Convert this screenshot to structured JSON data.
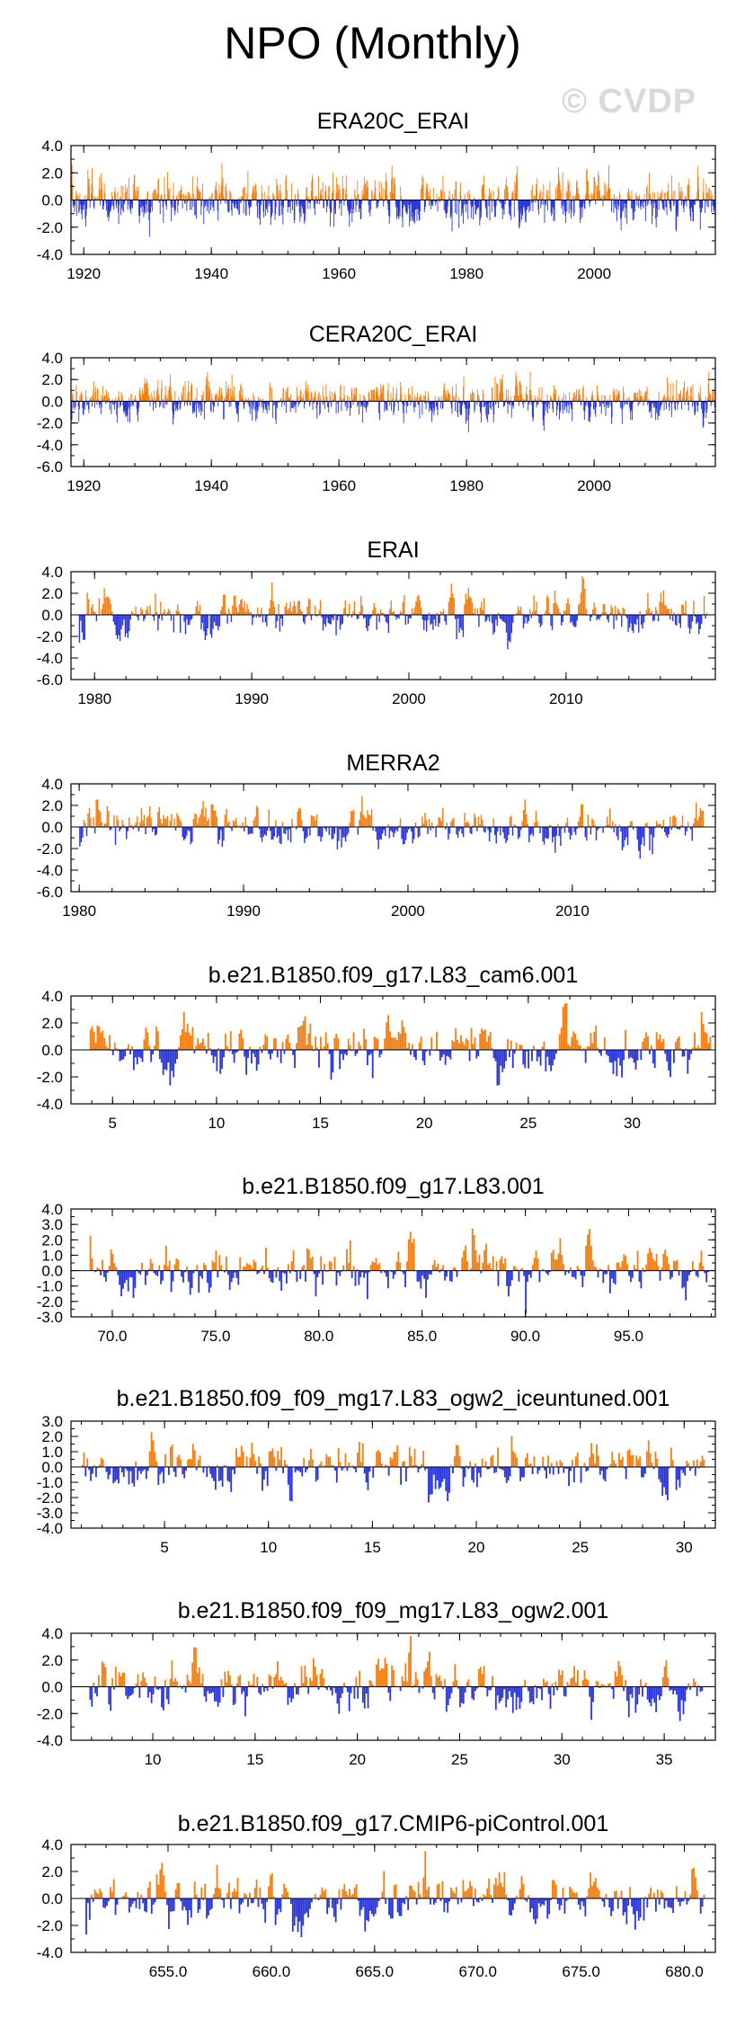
{
  "title": "NPO (Monthly)",
  "watermark": "© CVDP",
  "colors": {
    "positive": "#f07f17",
    "negative": "#2b36d9",
    "frame": "#000000"
  },
  "chart_data": [
    {
      "type": "bar",
      "title": "ERA20C_ERAI",
      "ylim": [
        -4,
        4
      ],
      "yticks": [
        4,
        2,
        0,
        -2,
        -4
      ],
      "ytick_labels": [
        "4.0",
        "2.0",
        "0.0",
        "-2.0",
        "-4.0"
      ],
      "xlim": [
        1918,
        2019
      ],
      "xticks": [
        1920,
        1940,
        1960,
        1980,
        2000
      ],
      "xtick_labels": [
        "1920",
        "1940",
        "1960",
        "1980",
        "2000"
      ],
      "series_spec": {
        "start": 1918,
        "end": 2019,
        "amplitude": 0.95,
        "seed": 11
      }
    },
    {
      "type": "bar",
      "title": "CERA20C_ERAI",
      "ylim": [
        -6,
        4
      ],
      "yticks": [
        4,
        2,
        0,
        -2,
        -4,
        -6
      ],
      "ytick_labels": [
        "4.0",
        "2.0",
        "0.0",
        "-2.0",
        "-4.0",
        "-6.0"
      ],
      "xlim": [
        1918,
        2019
      ],
      "xticks": [
        1920,
        1940,
        1960,
        1980,
        2000
      ],
      "xtick_labels": [
        "1920",
        "1940",
        "1960",
        "1980",
        "2000"
      ],
      "series_spec": {
        "start": 1918,
        "end": 2019,
        "amplitude": 0.9,
        "seed": 23
      }
    },
    {
      "type": "bar",
      "title": "ERAI",
      "ylim": [
        -6,
        4
      ],
      "yticks": [
        4,
        2,
        0,
        -2,
        -4,
        -6
      ],
      "ytick_labels": [
        "4.0",
        "2.0",
        "0.0",
        "-2.0",
        "-4.0",
        "-6.0"
      ],
      "xlim": [
        1978.5,
        2019.5
      ],
      "xticks": [
        1980,
        1990,
        2000,
        2010
      ],
      "xtick_labels": [
        "1980",
        "1990",
        "2000",
        "2010"
      ],
      "series_spec": {
        "start": 1979,
        "end": 2019,
        "amplitude": 1.0,
        "seed": 37
      }
    },
    {
      "type": "bar",
      "title": "MERRA2",
      "ylim": [
        -6,
        4
      ],
      "yticks": [
        4,
        2,
        0,
        -2,
        -4,
        -6
      ],
      "ytick_labels": [
        "4.0",
        "2.0",
        "0.0",
        "-2.0",
        "-4.0",
        "-6.0"
      ],
      "xlim": [
        1979.5,
        2018.7
      ],
      "xticks": [
        1980,
        1990,
        2000,
        2010
      ],
      "xtick_labels": [
        "1980",
        "1990",
        "2000",
        "2010"
      ],
      "series_spec": {
        "start": 1980,
        "end": 2018,
        "amplitude": 1.0,
        "seed": 41
      }
    },
    {
      "type": "bar",
      "title": "b.e21.B1850.f09_g17.L83_cam6.001",
      "ylim": [
        -4,
        4
      ],
      "yticks": [
        4,
        2,
        0,
        -2,
        -4
      ],
      "ytick_labels": [
        "4.0",
        "2.0",
        "0.0",
        "-2.0",
        "-4.0"
      ],
      "xlim": [
        3,
        34
      ],
      "xticks": [
        5,
        10,
        15,
        20,
        25,
        30
      ],
      "xtick_labels": [
        "5",
        "10",
        "15",
        "20",
        "25",
        "30"
      ],
      "series_spec": {
        "start": 3.9,
        "end": 33.8,
        "amplitude": 1.05,
        "seed": 53
      }
    },
    {
      "type": "bar",
      "title": "b.e21.B1850.f09_g17.L83.001",
      "ylim": [
        -3,
        4
      ],
      "yticks": [
        4,
        3,
        2,
        1,
        0,
        -1,
        -2,
        -3
      ],
      "ytick_labels": [
        "4.0",
        "3.0",
        "2.0",
        "1.0",
        "0.0",
        "-1.0",
        "-2.0",
        "-3.0"
      ],
      "xlim": [
        68,
        99.2
      ],
      "xticks": [
        70,
        75,
        80,
        85,
        90,
        95
      ],
      "xtick_labels": [
        "70.0",
        "75.0",
        "80.0",
        "85.0",
        "90.0",
        "95.0"
      ],
      "series_spec": {
        "start": 68.9,
        "end": 98.9,
        "amplitude": 0.85,
        "seed": 67
      }
    },
    {
      "type": "bar",
      "title": "b.e21.B1850.f09_f09_mg17.L83_ogw2_iceuntuned.001",
      "ylim": [
        -4,
        3
      ],
      "yticks": [
        3,
        2,
        1,
        0,
        -1,
        -2,
        -3,
        -4
      ],
      "ytick_labels": [
        "3.0",
        "2.0",
        "1.0",
        "0.0",
        "-1.0",
        "-2.0",
        "-3.0",
        "-4.0"
      ],
      "xlim": [
        0.5,
        31.5
      ],
      "xticks": [
        5,
        10,
        15,
        20,
        25,
        30
      ],
      "xtick_labels": [
        "5",
        "10",
        "15",
        "20",
        "25",
        "30"
      ],
      "series_spec": {
        "start": 1,
        "end": 31,
        "amplitude": 0.85,
        "seed": 79
      }
    },
    {
      "type": "bar",
      "title": "b.e21.B1850.f09_f09_mg17.L83_ogw2.001",
      "ylim": [
        -4,
        4
      ],
      "yticks": [
        4,
        2,
        0,
        -2,
        -4
      ],
      "ytick_labels": [
        "4.0",
        "2.0",
        "0.0",
        "-2.0",
        "-4.0"
      ],
      "xlim": [
        6,
        37.5
      ],
      "xticks": [
        10,
        15,
        20,
        25,
        30,
        35
      ],
      "xtick_labels": [
        "10",
        "15",
        "20",
        "25",
        "30",
        "35"
      ],
      "series_spec": {
        "start": 6.9,
        "end": 36.9,
        "amplitude": 1.0,
        "seed": 83
      }
    },
    {
      "type": "bar",
      "title": "b.e21.B1850.f09_g17.CMIP6-piControl.001",
      "ylim": [
        -4,
        4
      ],
      "yticks": [
        4,
        2,
        0,
        -2,
        -4
      ],
      "ytick_labels": [
        "4.0",
        "2.0",
        "0.0",
        "-2.0",
        "-4.0"
      ],
      "xlim": [
        650.3,
        681.5
      ],
      "xticks": [
        655,
        660,
        665,
        670,
        675,
        680
      ],
      "xtick_labels": [
        "655.0",
        "660.0",
        "665.0",
        "670.0",
        "675.0",
        "680.0"
      ],
      "series_spec": {
        "start": 651,
        "end": 681,
        "amplitude": 1.0,
        "seed": 97
      }
    }
  ]
}
